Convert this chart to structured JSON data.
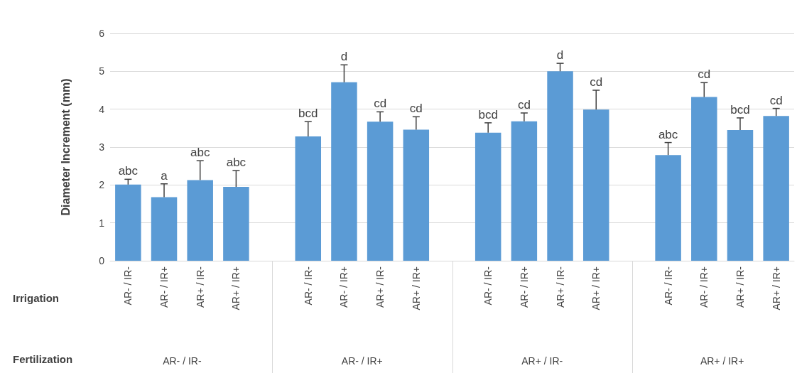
{
  "chart_data": {
    "type": "bar",
    "ylabel": "Diameter Increment (mm)",
    "categories": [
      "AR- / IR-",
      "AR- / IR+",
      "AR+ / IR-",
      "AR+ / IR+",
      null,
      "AR- / IR-",
      "AR- / IR+",
      "AR+ / IR-",
      "AR+ / IR+",
      null,
      "AR- / IR-",
      "AR- / IR+",
      "AR+ / IR-",
      "AR+ / IR+",
      null,
      "AR- / IR-",
      "AR- / IR+",
      "AR+ / IR-",
      "AR+ / IR+"
    ],
    "values": [
      2.01,
      1.68,
      2.13,
      1.95,
      null,
      3.28,
      4.71,
      3.67,
      3.46,
      null,
      3.38,
      3.68,
      5.0,
      3.99,
      null,
      2.79,
      4.32,
      3.45,
      3.82
    ],
    "errors": [
      [
        2.01,
        2.15
      ],
      [
        1.68,
        2.03
      ],
      [
        2.13,
        2.64
      ],
      [
        1.95,
        2.38
      ],
      null,
      [
        3.28,
        3.67
      ],
      [
        4.71,
        5.17
      ],
      [
        3.67,
        3.93
      ],
      [
        3.46,
        3.8
      ],
      null,
      [
        3.38,
        3.64
      ],
      [
        3.68,
        3.9
      ],
      [
        5.0,
        5.21
      ],
      [
        3.99,
        4.5
      ],
      null,
      [
        2.79,
        3.12
      ],
      [
        4.32,
        4.7
      ],
      [
        3.45,
        3.77
      ],
      [
        3.82,
        4.02
      ]
    ],
    "value_labels": [
      "abc",
      "a",
      "abc",
      "abc",
      null,
      "bcd",
      "d",
      "cd",
      "cd",
      null,
      "bcd",
      "cd",
      "d",
      "cd",
      null,
      "abc",
      "cd",
      "bcd",
      "cd"
    ],
    "color": "#5b9bd5",
    "ylim": [
      0,
      6
    ],
    "yticks": [
      0,
      1,
      2,
      3,
      4,
      5,
      6
    ],
    "grid": "y",
    "annotations": [
      "Irrigation",
      "Fertilization",
      "AR- / IR-",
      "AR- / IR+",
      "AR+ / IR-",
      "AR+ / IR+"
    ]
  }
}
